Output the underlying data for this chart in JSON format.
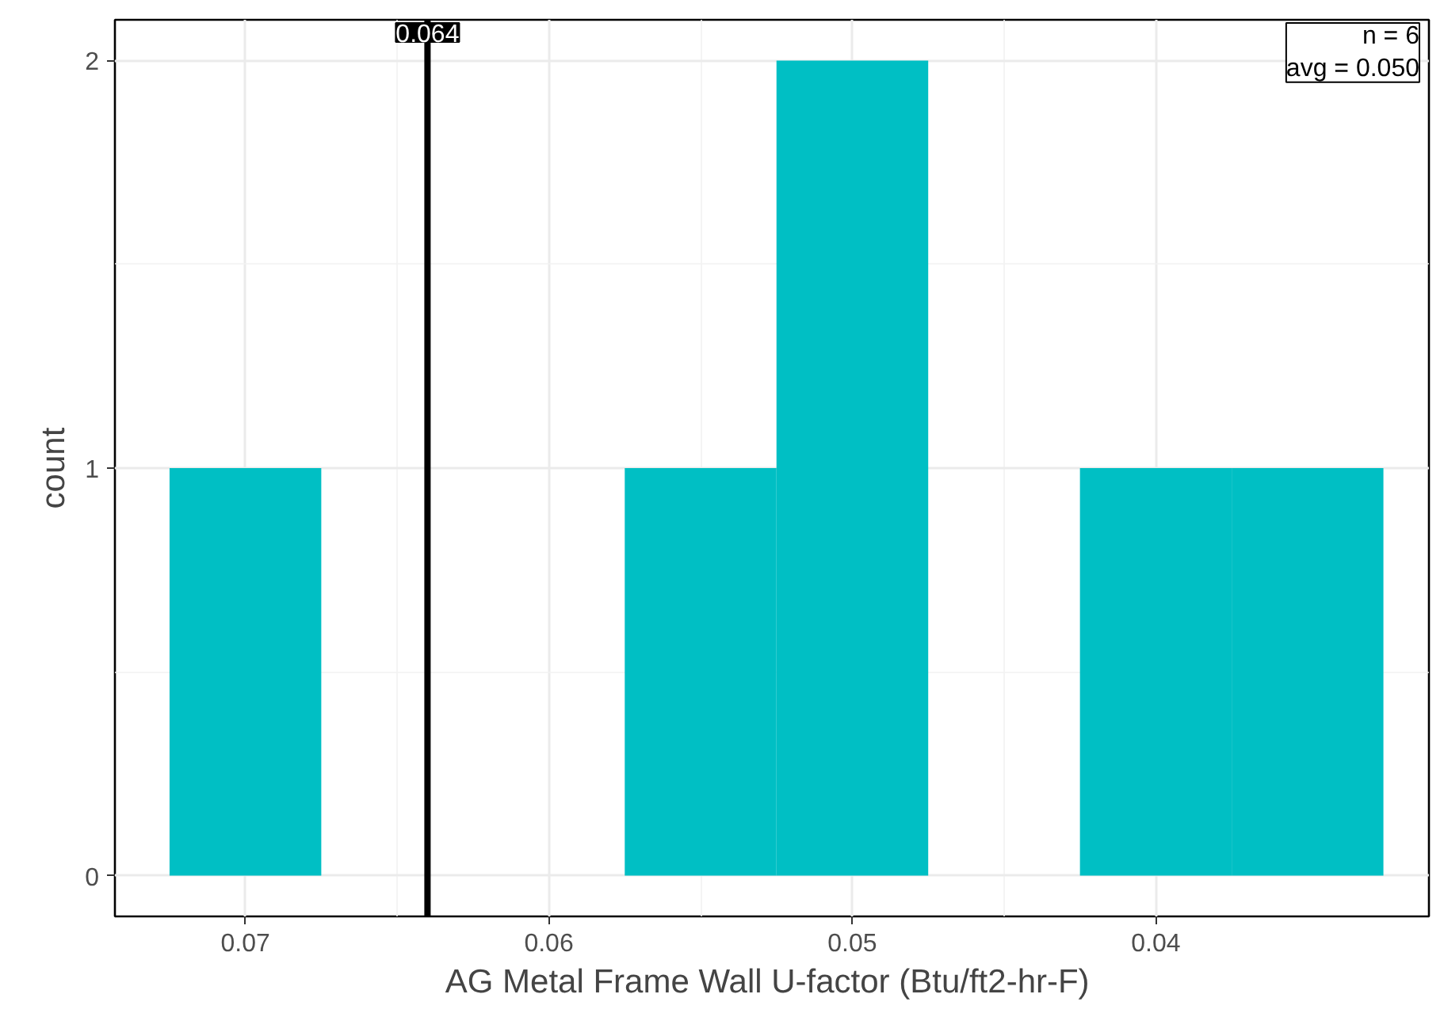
{
  "chart_data": {
    "type": "histogram",
    "xlabel": "AG Metal Frame Wall U-factor  (Btu/ft2-hr-F)",
    "ylabel": "count",
    "bins": [
      0.0325,
      0.0375,
      0.0425,
      0.0475,
      0.0525,
      0.0575,
      0.0625,
      0.0675,
      0.0725
    ],
    "values": [
      1,
      1,
      0,
      2,
      1,
      0,
      0,
      1
    ],
    "color": "#00bfc4",
    "xlim": [
      0.0743,
      0.031
    ],
    "xticks": [
      0.07,
      0.06,
      0.05,
      0.04
    ],
    "ylim": [
      -0.1,
      2.1
    ],
    "yticks": [
      0,
      1,
      2
    ],
    "ref_lines": [
      {
        "axis": "x",
        "value": 0.064,
        "label": "0.064",
        "color": "#000000"
      }
    ],
    "annotations": [
      "n = 6",
      "avg = 0.050"
    ],
    "grid": true
  }
}
